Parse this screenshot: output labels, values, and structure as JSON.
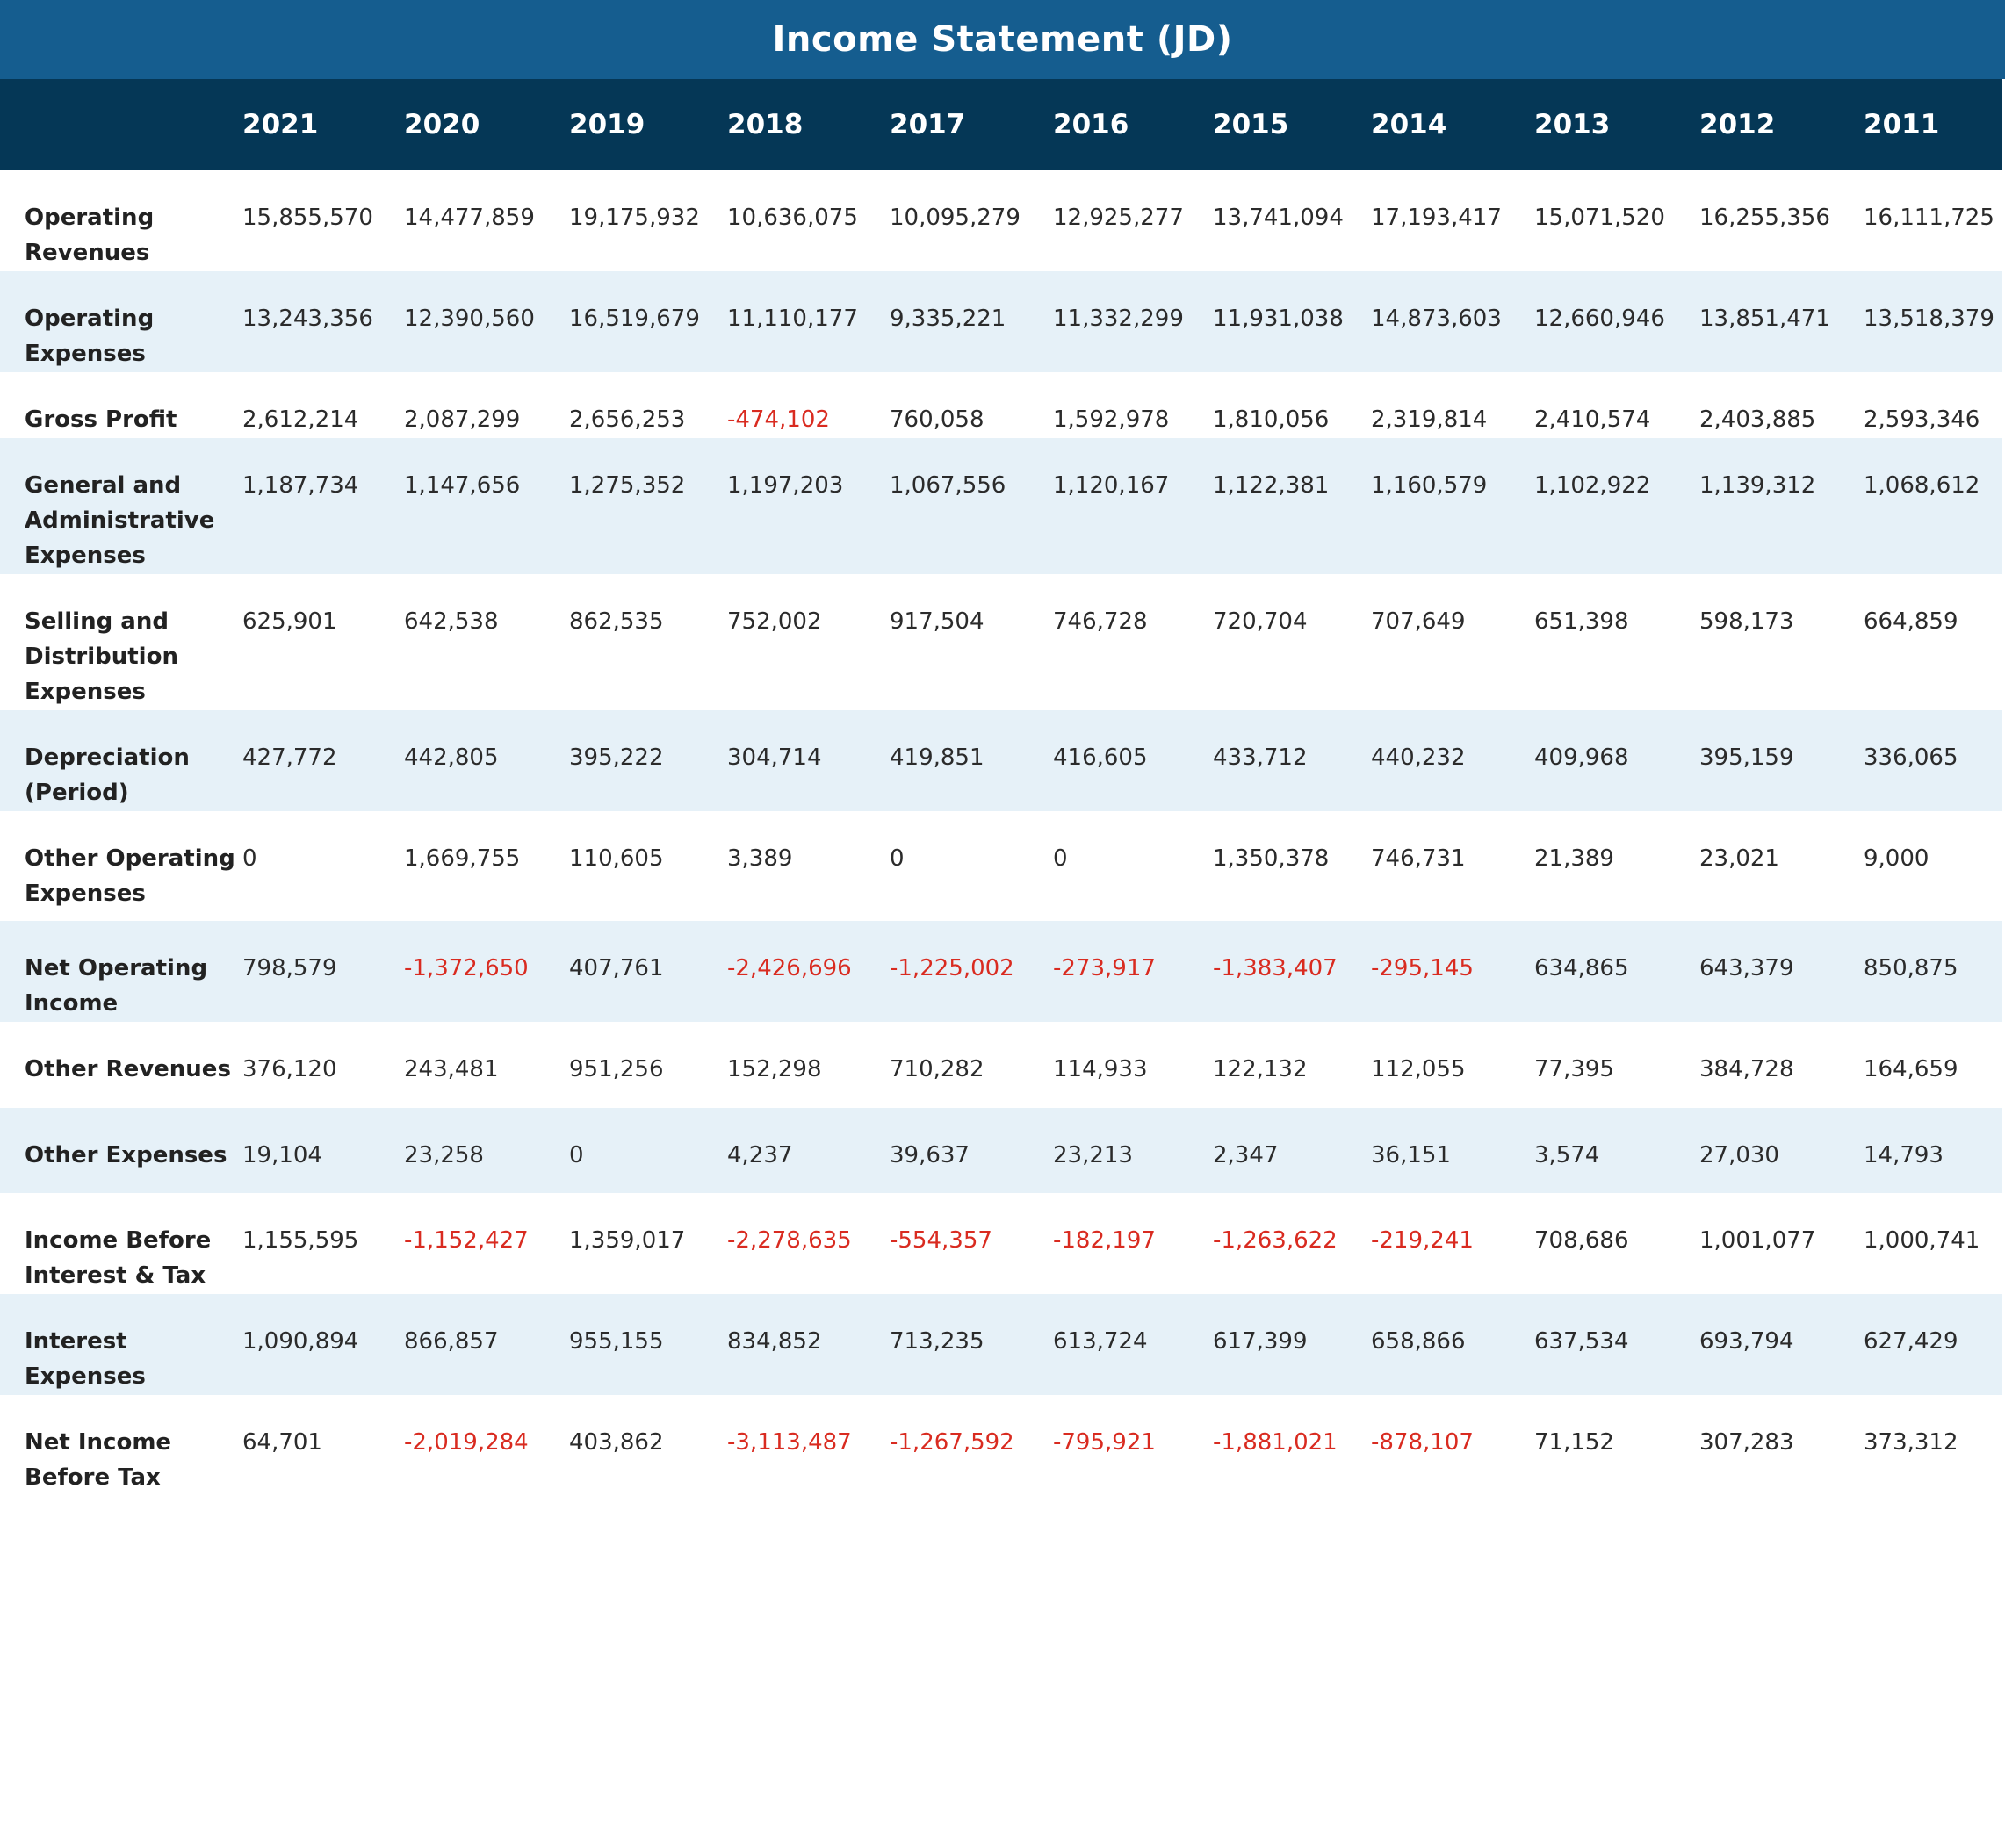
{
  "title": "Income Statement (JD)",
  "colors": {
    "title_bg": "#155d8f",
    "header_bg": "#053756",
    "shaded_row": "#e6f1f8",
    "negative": "#d92b20"
  },
  "years": [
    "2021",
    "2020",
    "2019",
    "2018",
    "2017",
    "2016",
    "2015",
    "2014",
    "2013",
    "2012",
    "2011"
  ],
  "rows": [
    {
      "label": "Operating Revenues",
      "values": [
        "15,855,570",
        "14,477,859",
        "19,175,932",
        "10,636,075",
        "10,095,279",
        "12,925,277",
        "13,741,094",
        "17,193,417",
        "15,071,520",
        "16,255,356",
        "16,111,725"
      ]
    },
    {
      "label": "Operating Expenses",
      "values": [
        "13,243,356",
        "12,390,560",
        "16,519,679",
        "11,110,177",
        "9,335,221",
        "11,332,299",
        "11,931,038",
        "14,873,603",
        "12,660,946",
        "13,851,471",
        "13,518,379"
      ]
    },
    {
      "label": "Gross Profit",
      "values": [
        "2,612,214",
        "2,087,299",
        "2,656,253",
        "-474,102",
        "760,058",
        "1,592,978",
        "1,810,056",
        "2,319,814",
        "2,410,574",
        "2,403,885",
        "2,593,346"
      ]
    },
    {
      "label": "General and Administrative Expenses",
      "values": [
        "1,187,734",
        "1,147,656",
        "1,275,352",
        "1,197,203",
        "1,067,556",
        "1,120,167",
        "1,122,381",
        "1,160,579",
        "1,102,922",
        "1,139,312",
        "1,068,612"
      ]
    },
    {
      "label": "Selling and Distribution Expenses",
      "values": [
        "625,901",
        "642,538",
        "862,535",
        "752,002",
        "917,504",
        "746,728",
        "720,704",
        "707,649",
        "651,398",
        "598,173",
        "664,859"
      ]
    },
    {
      "label": "Depreciation (Period)",
      "values": [
        "427,772",
        "442,805",
        "395,222",
        "304,714",
        "419,851",
        "416,605",
        "433,712",
        "440,232",
        "409,968",
        "395,159",
        "336,065"
      ]
    },
    {
      "label": "Other Operating Expenses",
      "values": [
        "0",
        "1,669,755",
        "110,605",
        "3,389",
        "0",
        "0",
        "1,350,378",
        "746,731",
        "21,389",
        "23,021",
        "9,000"
      ]
    },
    {
      "label": "Net Operating Income",
      "values": [
        "798,579",
        "-1,372,650",
        "407,761",
        "-2,426,696",
        "-1,225,002",
        "-273,917",
        "-1,383,407",
        "-295,145",
        "634,865",
        "643,379",
        "850,875"
      ]
    },
    {
      "label": "Other Revenues",
      "values": [
        "376,120",
        "243,481",
        "951,256",
        "152,298",
        "710,282",
        "114,933",
        "122,132",
        "112,055",
        "77,395",
        "384,728",
        "164,659"
      ]
    },
    {
      "label": "Other Expenses",
      "values": [
        "19,104",
        "23,258",
        "0",
        "4,237",
        "39,637",
        "23,213",
        "2,347",
        "36,151",
        "3,574",
        "27,030",
        "14,793"
      ]
    },
    {
      "label": "Income Before Interest & Tax",
      "values": [
        "1,155,595",
        "-1,152,427",
        "1,359,017",
        "-2,278,635",
        "-554,357",
        "-182,197",
        "-1,263,622",
        "-219,241",
        "708,686",
        "1,001,077",
        "1,000,741"
      ]
    },
    {
      "label": "Interest Expenses",
      "values": [
        "1,090,894",
        "866,857",
        "955,155",
        "834,852",
        "713,235",
        "613,724",
        "617,399",
        "658,866",
        "637,534",
        "693,794",
        "627,429"
      ]
    },
    {
      "label": "Net Income Before Tax",
      "values": [
        "64,701",
        "-2,019,284",
        "403,862",
        "-3,113,487",
        "-1,267,592",
        "-795,921",
        "-1,881,021",
        "-878,107",
        "71,152",
        "307,283",
        "373,312"
      ]
    }
  ]
}
